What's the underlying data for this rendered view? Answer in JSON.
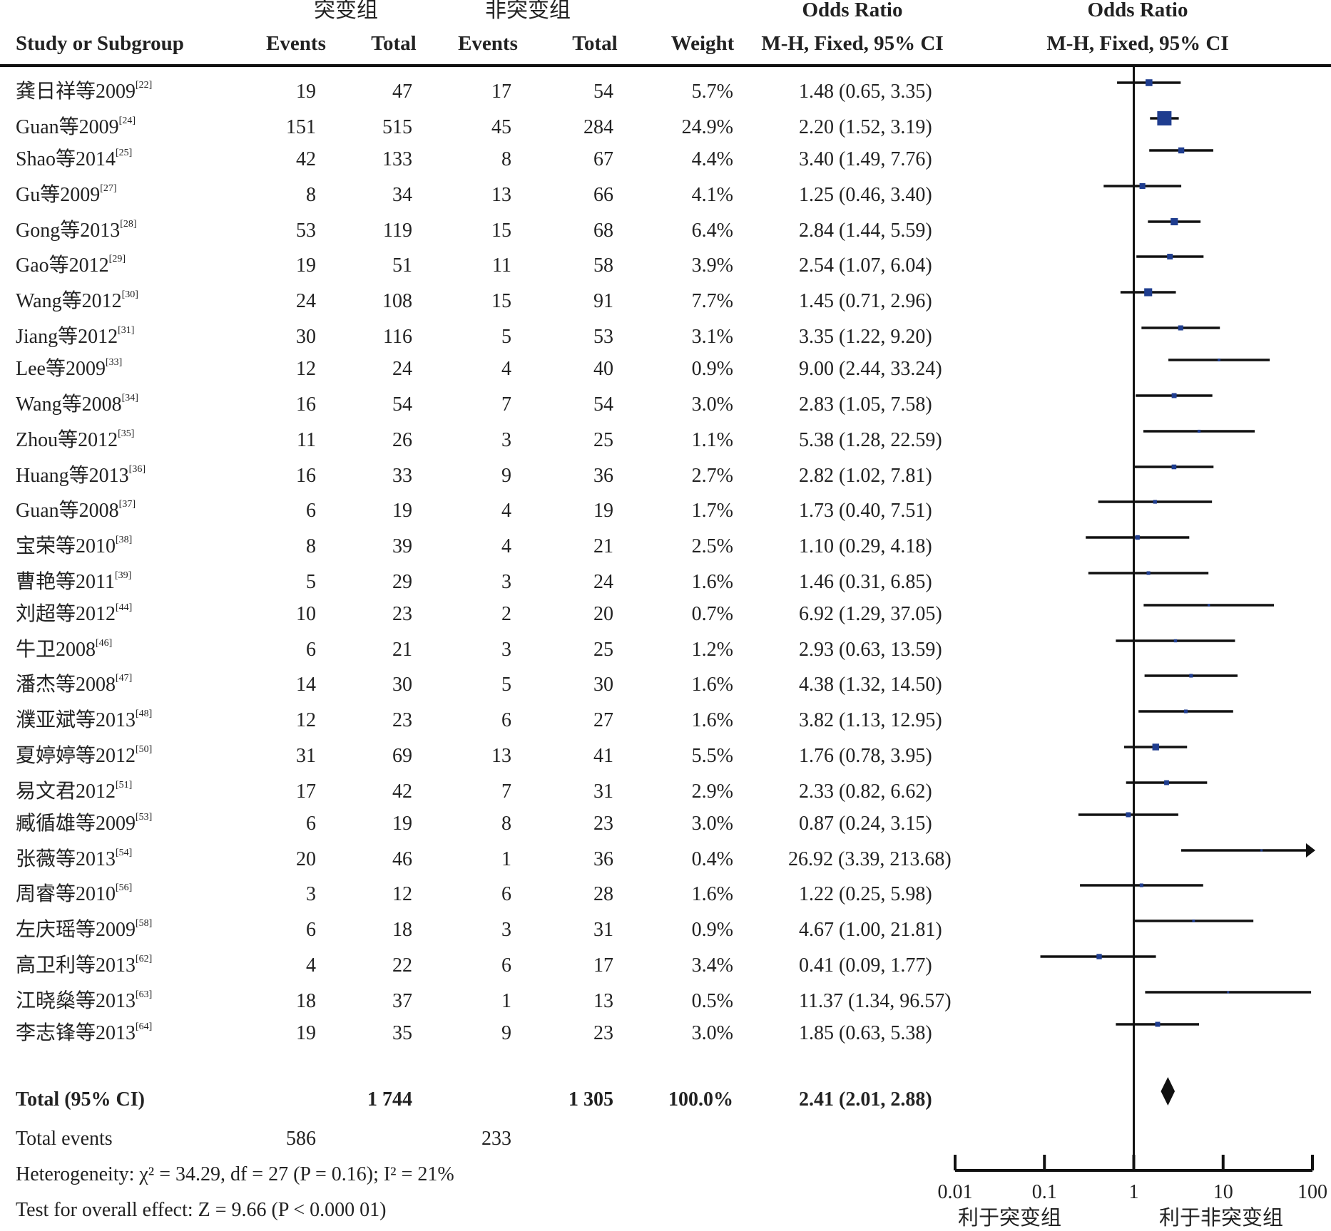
{
  "header": {
    "group1": "突变组",
    "group2": "非突变组",
    "or_title": "Odds Ratio",
    "or_sub": "M-H, Fixed, 95% CI",
    "plot_title": "Odds Ratio",
    "plot_sub": "M-H, Fixed, 95% CI",
    "study": "Study or Subgroup",
    "events": "Events",
    "total": "Total",
    "weight": "Weight"
  },
  "chart_data": {
    "type": "forest",
    "x_scale": "log",
    "xlim": [
      0.01,
      100
    ],
    "x_ticks": [
      "0.01",
      "0.1",
      "1",
      "10",
      "100"
    ],
    "favors_left": "利于突变组",
    "favors_right": "利于非突变组",
    "studies": [
      {
        "name": "龚日祥等2009",
        "ref": "[22]",
        "e1": "19",
        "t1": "47",
        "e2": "17",
        "t2": "54",
        "weight": "5.7%",
        "ci_text": "1.48 (0.65, 3.35)",
        "or": 1.48,
        "lo": 0.65,
        "hi": 3.35,
        "w": 5.7
      },
      {
        "name": "Guan等2009",
        "ref": "[24]",
        "e1": "151",
        "t1": "515",
        "e2": "45",
        "t2": "284",
        "weight": "24.9%",
        "ci_text": "2.20 (1.52, 3.19)",
        "or": 2.2,
        "lo": 1.52,
        "hi": 3.19,
        "w": 24.9
      },
      {
        "name": "Shao等2014",
        "ref": "[25]",
        "e1": "42",
        "t1": "133",
        "e2": "8",
        "t2": "67",
        "weight": "4.4%",
        "ci_text": "3.40 (1.49, 7.76)",
        "or": 3.4,
        "lo": 1.49,
        "hi": 7.76,
        "w": 4.4
      },
      {
        "name": "Gu等2009",
        "ref": "[27]",
        "e1": "8",
        "t1": "34",
        "e2": "13",
        "t2": "66",
        "weight": "4.1%",
        "ci_text": "1.25 (0.46, 3.40)",
        "or": 1.25,
        "lo": 0.46,
        "hi": 3.4,
        "w": 4.1
      },
      {
        "name": "Gong等2013",
        "ref": "[28]",
        "e1": "53",
        "t1": "119",
        "e2": "15",
        "t2": "68",
        "weight": "6.4%",
        "ci_text": "2.84 (1.44, 5.59)",
        "or": 2.84,
        "lo": 1.44,
        "hi": 5.59,
        "w": 6.4
      },
      {
        "name": "Gao等2012",
        "ref": "[29]",
        "e1": "19",
        "t1": "51",
        "e2": "11",
        "t2": "58",
        "weight": "3.9%",
        "ci_text": "2.54 (1.07, 6.04)",
        "or": 2.54,
        "lo": 1.07,
        "hi": 6.04,
        "w": 3.9
      },
      {
        "name": "Wang等2012",
        "ref": "[30]",
        "e1": "24",
        "t1": "108",
        "e2": "15",
        "t2": "91",
        "weight": "7.7%",
        "ci_text": "1.45 (0.71, 2.96)",
        "or": 1.45,
        "lo": 0.71,
        "hi": 2.96,
        "w": 7.7
      },
      {
        "name": "Jiang等2012",
        "ref": "[31]",
        "e1": "30",
        "t1": "116",
        "e2": "5",
        "t2": "53",
        "weight": "3.1%",
        "ci_text": "3.35 (1.22, 9.20)",
        "or": 3.35,
        "lo": 1.22,
        "hi": 9.2,
        "w": 3.1
      },
      {
        "name": "Lee等2009",
        "ref": "[33]",
        "e1": "12",
        "t1": "24",
        "e2": "4",
        "t2": "40",
        "weight": "0.9%",
        "ci_text": "9.00 (2.44, 33.24)",
        "or": 9.0,
        "lo": 2.44,
        "hi": 33.24,
        "w": 0.9
      },
      {
        "name": "Wang等2008",
        "ref": "[34]",
        "e1": "16",
        "t1": "54",
        "e2": "7",
        "t2": "54",
        "weight": "3.0%",
        "ci_text": "2.83 (1.05, 7.58)",
        "or": 2.83,
        "lo": 1.05,
        "hi": 7.58,
        "w": 3.0
      },
      {
        "name": "Zhou等2012",
        "ref": "[35]",
        "e1": "11",
        "t1": "26",
        "e2": "3",
        "t2": "25",
        "weight": "1.1%",
        "ci_text": "5.38 (1.28, 22.59)",
        "or": 5.38,
        "lo": 1.28,
        "hi": 22.59,
        "w": 1.1
      },
      {
        "name": "Huang等2013",
        "ref": "[36]",
        "e1": "16",
        "t1": "33",
        "e2": "9",
        "t2": "36",
        "weight": "2.7%",
        "ci_text": "2.82 (1.02, 7.81)",
        "or": 2.82,
        "lo": 1.02,
        "hi": 7.81,
        "w": 2.7
      },
      {
        "name": "Guan等2008",
        "ref": "[37]",
        "e1": "6",
        "t1": "19",
        "e2": "4",
        "t2": "19",
        "weight": "1.7%",
        "ci_text": "1.73 (0.40, 7.51)",
        "or": 1.73,
        "lo": 0.4,
        "hi": 7.51,
        "w": 1.7
      },
      {
        "name": "宝荣等2010",
        "ref": "[38]",
        "e1": "8",
        "t1": "39",
        "e2": "4",
        "t2": "21",
        "weight": "2.5%",
        "ci_text": "1.10 (0.29, 4.18)",
        "or": 1.1,
        "lo": 0.29,
        "hi": 4.18,
        "w": 2.5
      },
      {
        "name": "曹艳等2011",
        "ref": "[39]",
        "e1": "5",
        "t1": "29",
        "e2": "3",
        "t2": "24",
        "weight": "1.6%",
        "ci_text": "1.46 (0.31, 6.85)",
        "or": 1.46,
        "lo": 0.31,
        "hi": 6.85,
        "w": 1.6
      },
      {
        "name": "刘超等2012",
        "ref": "[44]",
        "e1": "10",
        "t1": "23",
        "e2": "2",
        "t2": "20",
        "weight": "0.7%",
        "ci_text": "6.92 (1.29, 37.05)",
        "or": 6.92,
        "lo": 1.29,
        "hi": 37.05,
        "w": 0.7
      },
      {
        "name": "牛卫2008",
        "ref": "[46]",
        "e1": "6",
        "t1": "21",
        "e2": "3",
        "t2": "25",
        "weight": "1.2%",
        "ci_text": "2.93 (0.63, 13.59)",
        "or": 2.93,
        "lo": 0.63,
        "hi": 13.59,
        "w": 1.2
      },
      {
        "name": "潘杰等2008",
        "ref": "[47]",
        "e1": "14",
        "t1": "30",
        "e2": "5",
        "t2": "30",
        "weight": "1.6%",
        "ci_text": "4.38 (1.32, 14.50)",
        "or": 4.38,
        "lo": 1.32,
        "hi": 14.5,
        "w": 1.6
      },
      {
        "name": "濮亚斌等2013",
        "ref": "[48]",
        "e1": "12",
        "t1": "23",
        "e2": "6",
        "t2": "27",
        "weight": "1.6%",
        "ci_text": "3.82 (1.13, 12.95)",
        "or": 3.82,
        "lo": 1.13,
        "hi": 12.95,
        "w": 1.6
      },
      {
        "name": "夏婷婷等2012",
        "ref": "[50]",
        "e1": "31",
        "t1": "69",
        "e2": "13",
        "t2": "41",
        "weight": "5.5%",
        "ci_text": "1.76 (0.78, 3.95)",
        "or": 1.76,
        "lo": 0.78,
        "hi": 3.95,
        "w": 5.5
      },
      {
        "name": "易文君2012",
        "ref": "[51]",
        "e1": "17",
        "t1": "42",
        "e2": "7",
        "t2": "31",
        "weight": "2.9%",
        "ci_text": "2.33 (0.82, 6.62)",
        "or": 2.33,
        "lo": 0.82,
        "hi": 6.62,
        "w": 2.9
      },
      {
        "name": "臧循雄等2009",
        "ref": "[53]",
        "e1": "6",
        "t1": "19",
        "e2": "8",
        "t2": "23",
        "weight": "3.0%",
        "ci_text": "0.87 (0.24, 3.15)",
        "or": 0.87,
        "lo": 0.24,
        "hi": 3.15,
        "w": 3.0
      },
      {
        "name": "张薇等2013",
        "ref": "[54]",
        "e1": "20",
        "t1": "46",
        "e2": "1",
        "t2": "36",
        "weight": "0.4%",
        "ci_text": "26.92 (3.39, 213.68)",
        "or": 26.92,
        "lo": 3.39,
        "hi": 213.68,
        "w": 0.4
      },
      {
        "name": "周睿等2010",
        "ref": "[56]",
        "e1": "3",
        "t1": "12",
        "e2": "6",
        "t2": "28",
        "weight": "1.6%",
        "ci_text": "1.22 (0.25, 5.98)",
        "or": 1.22,
        "lo": 0.25,
        "hi": 5.98,
        "w": 1.6
      },
      {
        "name": "左庆瑶等2009",
        "ref": "[58]",
        "e1": "6",
        "t1": "18",
        "e2": "3",
        "t2": "31",
        "weight": "0.9%",
        "ci_text": "4.67 (1.00, 21.81)",
        "or": 4.67,
        "lo": 1.0,
        "hi": 21.81,
        "w": 0.9
      },
      {
        "name": "高卫利等2013",
        "ref": "[62]",
        "e1": "4",
        "t1": "22",
        "e2": "6",
        "t2": "17",
        "weight": "3.4%",
        "ci_text": "0.41 (0.09, 1.77)",
        "or": 0.41,
        "lo": 0.09,
        "hi": 1.77,
        "w": 3.4
      },
      {
        "name": "江晓燊等2013",
        "ref": "[63]",
        "e1": "18",
        "t1": "37",
        "e2": "1",
        "t2": "13",
        "weight": "0.5%",
        "ci_text": "11.37 (1.34, 96.57)",
        "or": 11.37,
        "lo": 1.34,
        "hi": 96.57,
        "w": 0.5
      },
      {
        "name": "李志锋等2013",
        "ref": "[64]",
        "e1": "19",
        "t1": "35",
        "e2": "9",
        "t2": "23",
        "weight": "3.0%",
        "ci_text": "1.85 (0.63, 5.38)",
        "or": 1.85,
        "lo": 0.63,
        "hi": 5.38,
        "w": 3.0
      }
    ],
    "total": {
      "label": "Total (95% CI)",
      "t1": "1 744",
      "t2": "1 305",
      "weight": "100.0%",
      "ci_text": "2.41 (2.01, 2.88)",
      "or": 2.41,
      "lo": 2.01,
      "hi": 2.88
    },
    "colors": {
      "box": "#1f3d8f",
      "line": "#111111",
      "diamond": "#111111"
    }
  },
  "footer": {
    "events_label": "Total events",
    "events1": "586",
    "events2": "233",
    "heterogeneity": "Heterogeneity:  χ² = 34.29, df = 27 (P = 0.16); I² = 21%",
    "overall": "Test for overall effect: Z = 9.66 (P < 0.000 01)"
  }
}
